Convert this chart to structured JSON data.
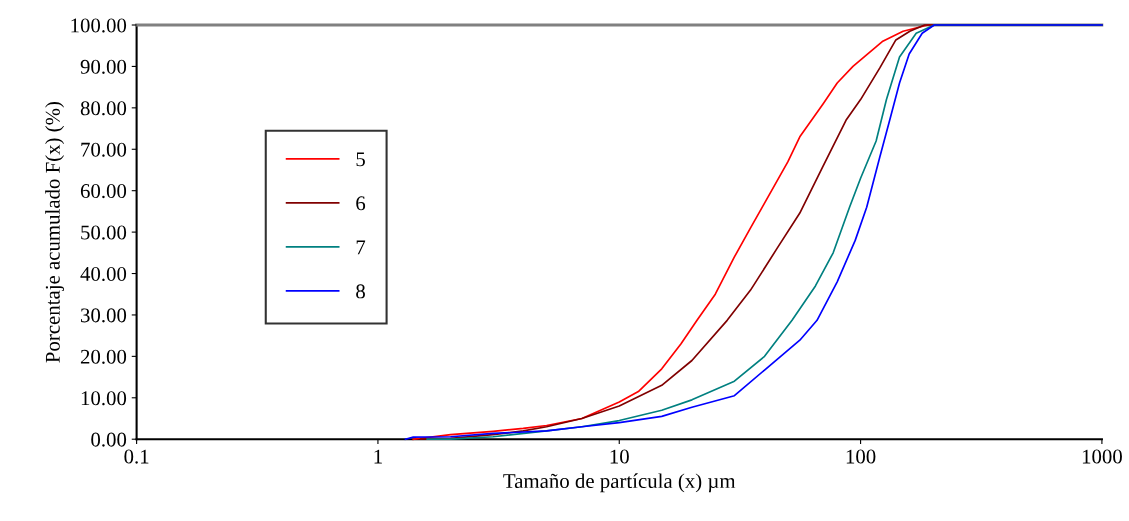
{
  "chart_data": {
    "type": "line",
    "xlabel": "Tamaño de partícula (x) µm",
    "ylabel": "Porcentaje acumulado F(x) (%)",
    "log": "x",
    "xlim": [
      0.1,
      1000
    ],
    "xticks": [
      0.1,
      1,
      10,
      100,
      1000
    ],
    "ylim": [
      0,
      100
    ],
    "yticks": [
      {
        "value": 0,
        "label": "0.00"
      },
      {
        "value": 10,
        "label": "10.00"
      },
      {
        "value": 20,
        "label": "20.00"
      },
      {
        "value": 30,
        "label": "30.00"
      },
      {
        "value": 40,
        "label": "40.00"
      },
      {
        "value": 50,
        "label": "50.00"
      },
      {
        "value": 60,
        "label": "60.00"
      },
      {
        "value": 70,
        "label": "70.00"
      },
      {
        "value": 80,
        "label": "80.00"
      },
      {
        "value": 90,
        "label": "90.00"
      },
      {
        "value": 100,
        "label": "100.00"
      }
    ],
    "grid": false,
    "legend": "center left",
    "marker": "none",
    "line_style": "solid",
    "series": [
      {
        "name": "5",
        "color": "#ff0000",
        "x": [
          1.4,
          2,
          3,
          4,
          5,
          7,
          10,
          12,
          15,
          18,
          21,
          25,
          30,
          35,
          40,
          50,
          56,
          70,
          80,
          93,
          123,
          150,
          190,
          1000
        ],
        "values": [
          0,
          1.1,
          1.9,
          2.6,
          3.3,
          5,
          9,
          11.5,
          17,
          23,
          28.7,
          35,
          44,
          51,
          57,
          67,
          73,
          81,
          86,
          90,
          96,
          98.5,
          100,
          100
        ]
      },
      {
        "name": "6",
        "color": "#800000",
        "x": [
          1.5,
          2,
          3,
          4,
          5,
          7,
          10,
          15,
          20,
          28,
          35,
          45,
          56,
          70,
          87,
          100,
          120,
          140,
          160,
          184,
          1000
        ],
        "values": [
          0,
          0.2,
          1.1,
          2,
          3,
          5,
          8,
          13,
          19,
          28.7,
          36,
          46,
          54.6,
          66,
          77,
          82,
          89.6,
          96.4,
          98.5,
          100,
          100
        ]
      },
      {
        "name": "7",
        "color": "#008080",
        "x": [
          1.6,
          2,
          3,
          5,
          7,
          10,
          15,
          20,
          30,
          40,
          52,
          65,
          77,
          90,
          100,
          116,
          128,
          145,
          170,
          202,
          1000
        ],
        "values": [
          0,
          0,
          0.6,
          2,
          3,
          4.5,
          7,
          9.5,
          14,
          20,
          28.7,
          37,
          45,
          56,
          63,
          72,
          82,
          92.3,
          98,
          100,
          100
        ]
      },
      {
        "name": "8",
        "color": "#0000ff",
        "x": [
          1.3,
          1.4,
          2,
          3,
          5,
          7,
          10,
          15,
          20,
          30,
          40,
          56,
          66,
          80,
          95,
          106,
          120,
          132,
          145,
          159,
          180,
          202,
          1000
        ],
        "values": [
          0,
          0.5,
          0.6,
          1.4,
          2,
          3,
          4,
          5.5,
          7.7,
          10.5,
          16.7,
          23.9,
          28.7,
          38,
          48,
          56,
          68,
          77,
          86,
          93,
          98,
          100,
          100
        ]
      }
    ]
  }
}
